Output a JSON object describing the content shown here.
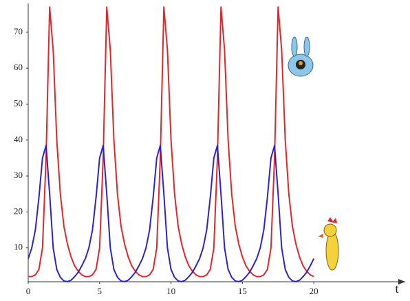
{
  "chart_data": {
    "type": "line",
    "x_label": "t",
    "x": [
      0,
      0.25,
      0.5,
      0.75,
      1,
      1.25,
      1.5,
      1.75,
      2,
      2.25,
      2.5,
      2.75,
      3,
      3.25,
      3.5,
      3.75,
      4,
      4.25,
      4.5,
      4.75,
      5,
      5.25,
      5.5,
      5.75,
      6,
      6.25,
      6.5,
      6.75,
      7,
      7.25,
      7.5,
      7.75,
      8,
      8.25,
      8.5,
      8.75,
      9,
      9.25,
      9.5,
      9.75,
      10,
      10.25,
      10.5,
      10.75,
      11,
      11.25,
      11.5,
      11.75,
      12,
      12.25,
      12.5,
      12.75,
      13,
      13.25,
      13.5,
      13.75,
      14,
      14.25,
      14.5,
      14.75,
      15,
      15.25,
      15.5,
      15.75,
      16,
      16.25,
      16.5,
      16.75,
      17,
      17.25,
      17.5,
      17.75,
      18,
      18.25,
      18.5,
      18.75,
      19,
      19.25,
      19.5,
      19.75,
      20
    ],
    "series": [
      {
        "color": "#e3262c",
        "values": [
          2,
          2,
          2.5,
          4,
          10,
          35,
          77,
          65,
          40,
          25,
          16,
          11,
          7.5,
          5,
          3.5,
          2.5,
          2,
          2,
          2.5,
          4,
          10,
          35,
          77,
          65,
          40,
          25,
          16,
          11,
          7.5,
          5,
          3.5,
          2.5,
          2,
          2,
          2.5,
          4,
          10,
          35,
          77,
          65,
          40,
          25,
          16,
          11,
          7.5,
          5,
          3.5,
          2.5,
          2,
          2,
          2.5,
          4,
          10,
          35,
          77,
          65,
          40,
          25,
          16,
          11,
          7.5,
          5,
          3.5,
          2.5,
          2,
          2,
          2.5,
          4,
          10,
          35,
          77,
          65,
          40,
          25,
          16,
          11,
          7.5,
          5,
          3.5,
          2.5,
          2
        ]
      },
      {
        "color": "#2b22d4",
        "values": [
          7,
          10,
          15,
          24,
          35,
          38.5,
          25,
          10,
          4,
          1.8,
          0.8,
          0.6,
          1,
          2,
          3.2,
          5,
          7,
          10,
          15,
          24,
          35,
          38.5,
          25,
          10,
          4,
          1.8,
          0.8,
          0.6,
          1,
          2,
          3.2,
          5,
          7,
          10,
          15,
          24,
          35,
          38.5,
          25,
          10,
          4,
          1.8,
          0.8,
          0.6,
          1,
          2,
          3.2,
          5,
          7,
          10,
          15,
          24,
          35,
          38.5,
          25,
          10,
          4,
          1.8,
          0.8,
          0.6,
          1,
          2,
          3.2,
          5,
          7,
          10,
          15,
          24,
          35,
          38.5,
          25,
          10,
          4,
          1.8,
          0.8,
          0.6,
          1,
          2,
          3.2,
          5,
          7
        ]
      }
    ],
    "xlim": [
      0,
      26.4
    ],
    "xticks": [
      0,
      5,
      10,
      15,
      20
    ],
    "ylim": [
      0,
      78
    ],
    "yticks": [
      10,
      20,
      30,
      40,
      50,
      60,
      70
    ]
  }
}
